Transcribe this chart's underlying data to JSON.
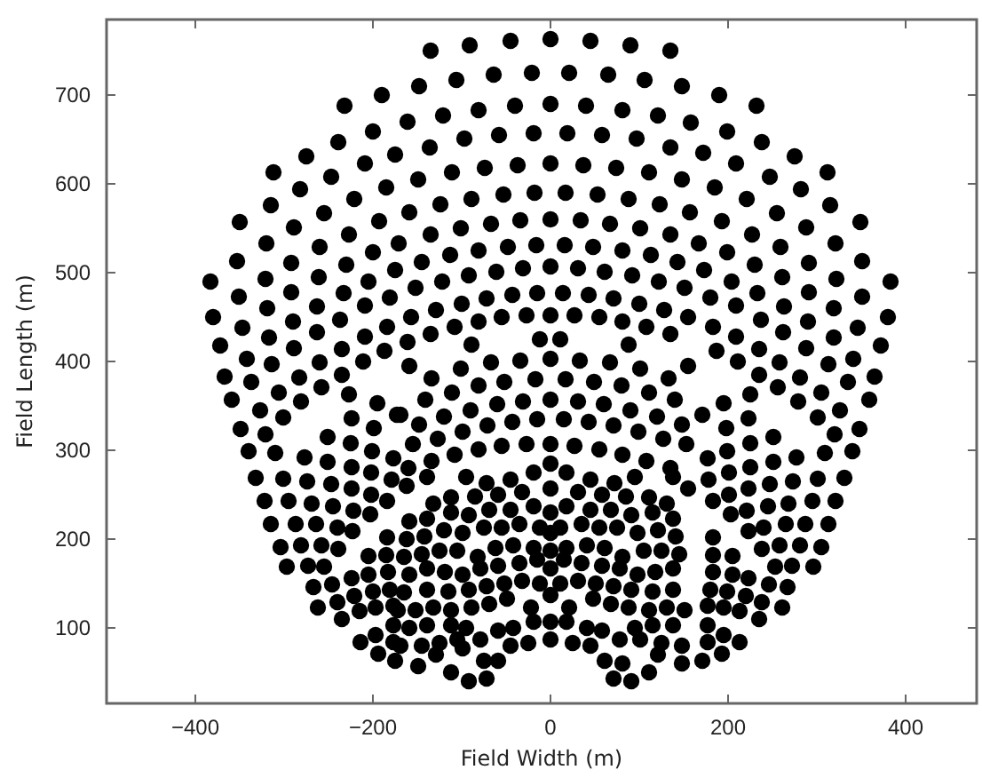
{
  "chart_data": {
    "type": "scatter",
    "xlabel": "Field Width (m)",
    "ylabel": "Field Length (m)",
    "marker": "circle",
    "xlim": [
      -500,
      480
    ],
    "ylim": [
      15,
      785
    ],
    "xticks": [
      -400,
      -200,
      0,
      200,
      400
    ],
    "yticks": [
      100,
      200,
      300,
      400,
      500,
      600,
      700
    ],
    "series": [
      {
        "color": "#000000",
        "x": [
          -190,
          -232,
          -200,
          -239,
          -175,
          -275,
          -209,
          -312,
          -247,
          -185,
          -282,
          -221,
          -315,
          -255,
          -193,
          -350,
          -289,
          -227,
          -320,
          -260,
          -171,
          -200,
          -353,
          -292,
          -230,
          -175,
          -383,
          -321,
          -261,
          -205,
          -351,
          -292,
          -233,
          -181,
          -380,
          -319,
          -263,
          -209,
          -347,
          -290,
          -237,
          -184,
          -372,
          -317,
          -263,
          -209,
          -289,
          -235,
          -187,
          190,
          232,
          199,
          238,
          172,
          275,
          209,
          312,
          247,
          185,
          282,
          221,
          315,
          255,
          193,
          349,
          288,
          227,
          167,
          321,
          259,
          199,
          351,
          291,
          230,
          173,
          383,
          322,
          261,
          204,
          351,
          291,
          233,
          180,
          380,
          319,
          263,
          209,
          346,
          290,
          237,
          183,
          372,
          319,
          262,
          209,
          187,
          235,
          288,
          -135,
          -91,
          -45,
          0,
          45,
          90,
          135,
          -148,
          -106,
          -64,
          -21,
          21,
          65,
          106,
          148,
          -161,
          -121,
          -81,
          -40,
          0,
          40,
          81,
          121,
          158,
          -136,
          -97,
          -58,
          -19,
          19,
          58,
          97,
          135,
          -149,
          -111,
          -74,
          -37,
          0,
          37,
          74,
          111,
          148,
          -159,
          -124,
          -89,
          -53,
          -18,
          17,
          53,
          88,
          123,
          157,
          -135,
          -101,
          -67,
          -34,
          0,
          34,
          67,
          101,
          135,
          -145,
          -113,
          -81,
          -48,
          -16,
          16,
          48,
          81,
          113,
          143,
          -152,
          -122,
          -92,
          -61,
          -31,
          0,
          31,
          61,
          92,
          122,
          151,
          -157,
          -129,
          -100,
          -72,
          -43,
          -15,
          14,
          43,
          71,
          100,
          128,
          155,
          -161,
          -135,
          -108,
          -81,
          -55,
          -27,
          0,
          27,
          55,
          81,
          108,
          135,
          -12,
          11,
          -89,
          88,
          -342,
          -314,
          -260,
          -211,
          -235,
          -367,
          -337,
          -283,
          -258,
          -359,
          -306,
          -281,
          -227,
          -195,
          -327,
          -301,
          -224,
          -173,
          -349,
          -321,
          -251,
          -199,
          -340,
          -310,
          -277,
          -251,
          -225,
          -201,
          -177,
          -332,
          -301,
          -274,
          -247,
          -224,
          -202,
          -179,
          -322,
          -295,
          -269,
          -245,
          -224,
          -202,
          -184,
          -315,
          -287,
          -264,
          -240,
          -222,
          -203,
          -304,
          -281,
          -258,
          -239,
          -223,
          -184,
          -297,
          -273,
          -255,
          -205,
          -185,
          -267,
          -246,
          -224,
          -205,
          -183,
          -262,
          -240,
          -221,
          -200,
          -181,
          -235,
          -215,
          -197,
          -177,
          -214,
          -197,
          -177,
          -194,
          -175,
          -177,
          211,
          258,
          313,
          341,
          235,
          365,
          335,
          281,
          256,
          359,
          305,
          279,
          225,
          195,
          326,
          301,
          223,
          171,
          348,
          320,
          251,
          198,
          340,
          309,
          277,
          251,
          225,
          199,
          177,
          331,
          301,
          273,
          247,
          225,
          201,
          178,
          321,
          295,
          268,
          245,
          223,
          201,
          183,
          313,
          287,
          265,
          240,
          221,
          203,
          305,
          281,
          258,
          238,
          223,
          183,
          296,
          272,
          253,
          205,
          183,
          267,
          246,
          223,
          205,
          183,
          261,
          238,
          220,
          199,
          180,
          235,
          213,
          195,
          177,
          213,
          195,
          177,
          193,
          171,
          177,
          -159,
          -134,
          -101,
          -67,
          -34,
          0,
          33,
          67,
          101,
          133,
          155,
          -141,
          -111,
          -81,
          -52,
          -17,
          17,
          49,
          80,
          111,
          140,
          -169,
          -148,
          -120,
          -90,
          -60,
          -31,
          0,
          31,
          60,
          90,
          120,
          148,
          -155,
          -127,
          -99,
          -71,
          -43,
          -15,
          15,
          43,
          71,
          99,
          127,
          153,
          -160,
          -134,
          -108,
          -81,
          -55,
          -27,
          0,
          27,
          55,
          81,
          108,
          135,
          -139,
          -162,
          -95,
          -72,
          -45,
          -19,
          0,
          18,
          45,
          72,
          95,
          138,
          155,
          -132,
          -112,
          -85,
          -59,
          -32,
          0,
          31,
          58,
          85,
          111,
          131,
          -159,
          -139,
          -112,
          -92,
          -69,
          -45,
          -19,
          0,
          18,
          45,
          68,
          91,
          115,
          138,
          -162,
          -142,
          -120,
          -99,
          -75,
          -55,
          -35,
          -12,
          0,
          11,
          35,
          55,
          75,
          98,
          121,
          141,
          -165,
          -145,
          -125,
          -105,
          -82,
          -62,
          -42,
          -19,
          0,
          18,
          41,
          61,
          81,
          105,
          125,
          145,
          -159,
          -139,
          -119,
          -99,
          -79,
          -59,
          -35,
          -15,
          0,
          15,
          35,
          58,
          78,
          98,
          118,
          138,
          -165,
          -139,
          -115,
          -92,
          -72,
          -52,
          -32,
          -12,
          11,
          31,
          51,
          71,
          91,
          115,
          138,
          -172,
          -152,
          -132,
          -112,
          -89,
          -69,
          -49,
          -22,
          0,
          21,
          48,
          68,
          88,
          111,
          131,
          151,
          -159,
          -139,
          -112,
          -95,
          -59,
          -42,
          -19,
          0,
          18,
          41,
          58,
          95,
          115,
          138,
          -169,
          -145,
          -125,
          -105,
          -79,
          -45,
          -25,
          0,
          25,
          45,
          78,
          101,
          125,
          148,
          -149,
          -129,
          -99,
          -75,
          -59,
          61,
          81,
          121,
          148,
          -112,
          -92,
          -72,
          71,
          91,
          111
        ],
        "values": [
          700,
          688,
          659,
          647,
          633,
          631,
          623,
          613,
          608,
          596,
          594,
          583,
          576,
          567,
          558,
          557,
          551,
          543,
          533,
          529,
          533,
          523,
          513,
          511,
          509,
          503,
          490,
          493,
          495,
          490,
          473,
          478,
          477,
          472,
          450,
          460,
          462,
          463,
          438,
          445,
          447,
          439,
          418,
          427,
          433,
          428,
          415,
          414,
          412,
          700,
          688,
          659,
          647,
          635,
          631,
          623,
          613,
          608,
          596,
          594,
          583,
          576,
          567,
          558,
          557,
          551,
          543,
          533,
          533,
          529,
          523,
          513,
          511,
          509,
          503,
          490,
          493,
          495,
          490,
          473,
          478,
          477,
          472,
          450,
          460,
          462,
          463,
          438,
          445,
          447,
          439,
          418,
          427,
          433,
          428,
          412,
          414,
          415,
          750,
          756,
          761,
          763,
          761,
          756,
          750,
          710,
          717,
          723,
          725,
          725,
          723,
          717,
          710,
          670,
          677,
          683,
          688,
          690,
          688,
          683,
          677,
          669,
          641,
          651,
          655,
          657,
          657,
          655,
          651,
          641,
          605,
          613,
          618,
          621,
          623,
          621,
          618,
          613,
          605,
          568,
          577,
          583,
          588,
          590,
          590,
          588,
          583,
          577,
          568,
          543,
          550,
          555,
          559,
          560,
          559,
          555,
          550,
          543,
          512,
          520,
          525,
          529,
          531,
          531,
          529,
          525,
          520,
          512,
          483,
          490,
          497,
          501,
          505,
          507,
          505,
          501,
          497,
          490,
          483,
          450,
          458,
          465,
          471,
          475,
          477,
          477,
          475,
          471,
          465,
          458,
          450,
          422,
          431,
          439,
          445,
          450,
          452,
          452,
          452,
          450,
          445,
          439,
          431,
          425,
          425,
          419,
          419,
          403,
          397,
          399,
          400,
          385,
          383,
          377,
          382,
          371,
          357,
          365,
          355,
          363,
          353,
          345,
          337,
          336,
          340,
          324,
          318,
          315,
          325,
          299,
          297,
          292,
          287,
          308,
          299,
          291,
          269,
          268,
          265,
          262,
          281,
          275,
          267,
          243,
          243,
          240,
          237,
          257,
          250,
          243,
          217,
          217,
          217,
          213,
          232,
          228,
          191,
          193,
          193,
          189,
          209,
          202,
          169,
          170,
          169,
          181,
          182,
          146,
          149,
          156,
          160,
          163,
          123,
          129,
          136,
          141,
          143,
          110,
          119,
          123,
          125,
          84,
          92,
          84,
          71,
          63,
          103,
          400,
          399,
          397,
          403,
          385,
          383,
          377,
          382,
          371,
          357,
          365,
          355,
          363,
          353,
          345,
          337,
          336,
          340,
          324,
          318,
          315,
          325,
          299,
          297,
          292,
          287,
          308,
          299,
          291,
          269,
          268,
          265,
          262,
          281,
          275,
          267,
          243,
          243,
          240,
          237,
          257,
          250,
          243,
          217,
          217,
          217,
          213,
          232,
          228,
          191,
          193,
          193,
          189,
          209,
          202,
          169,
          170,
          169,
          181,
          182,
          146,
          149,
          156,
          160,
          163,
          123,
          129,
          136,
          141,
          143,
          110,
          119,
          123,
          125,
          84,
          92,
          84,
          71,
          63,
          103,
          395,
          381,
          392,
          399,
          401,
          403,
          401,
          399,
          392,
          381,
          395,
          357,
          365,
          373,
          377,
          380,
          380,
          377,
          373,
          365,
          357,
          340,
          329,
          338,
          345,
          352,
          355,
          357,
          355,
          352,
          345,
          338,
          329,
          307,
          313,
          321,
          328,
          332,
          335,
          335,
          332,
          328,
          321,
          313,
          307,
          280,
          288,
          295,
          301,
          305,
          307,
          307,
          305,
          301,
          295,
          288,
          280,
          270,
          260,
          270,
          263,
          267,
          275,
          285,
          275,
          267,
          263,
          270,
          270,
          257,
          240,
          247,
          248,
          250,
          253,
          257,
          253,
          250,
          248,
          247,
          240,
          220,
          223,
          230,
          227,
          233,
          233,
          237,
          230,
          237,
          233,
          233,
          227,
          230,
          223,
          200,
          203,
          210,
          207,
          213,
          213,
          217,
          213,
          207,
          213,
          217,
          213,
          213,
          207,
          210,
          203,
          180,
          183,
          187,
          187,
          180,
          190,
          193,
          190,
          187,
          190,
          193,
          190,
          180,
          187,
          187,
          183,
          160,
          167,
          163,
          160,
          167,
          170,
          173,
          177,
          167,
          177,
          173,
          170,
          167,
          160,
          163,
          167,
          140,
          143,
          141,
          143,
          147,
          150,
          153,
          150,
          150,
          153,
          150,
          147,
          143,
          141,
          143,
          120,
          120,
          123,
          120,
          123,
          127,
          133,
          123,
          137,
          123,
          133,
          127,
          123,
          120,
          123,
          120,
          100,
          103,
          103,
          100,
          97,
          100,
          107,
          107,
          107,
          100,
          97,
          100,
          103,
          103,
          80,
          80,
          83,
          87,
          87,
          80,
          83,
          87,
          83,
          80,
          87,
          87,
          83,
          80,
          57,
          70,
          77,
          63,
          63,
          63,
          60,
          70,
          60,
          50,
          40,
          43,
          43,
          40,
          50
        ]
      }
    ]
  }
}
